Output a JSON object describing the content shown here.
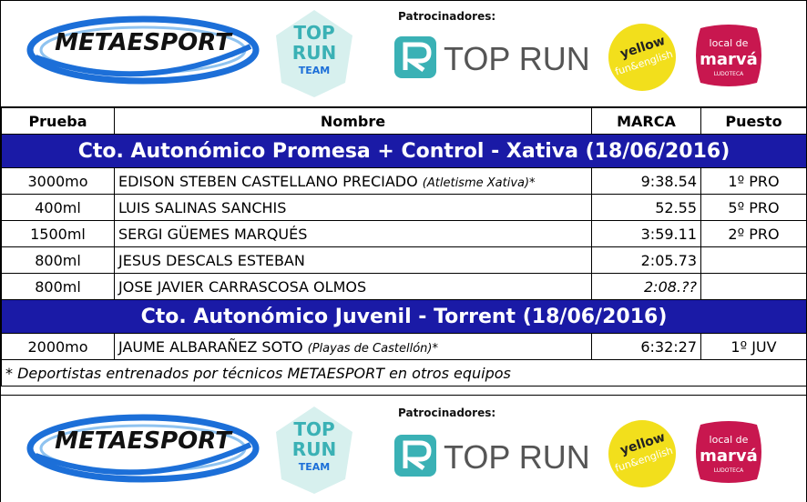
{
  "banner": {
    "metaesport_logo_text": "METAESPORT",
    "toprun_team_line1": "TOP",
    "toprun_team_line2": "RUN",
    "toprun_team_line3": "TEAM",
    "sponsors_label": "Patrocinadores:",
    "toprun_wordmark": "TOP RUN",
    "yellow_text1": "yellow",
    "yellow_text2": "fun&english",
    "local_text1": "local de",
    "local_text2": "marvá",
    "local_text3": "LUDOTECA"
  },
  "table": {
    "headers": {
      "prueba": "Prueba",
      "nombre": "Nombre",
      "marca": "MARCA",
      "puesto": "Puesto"
    },
    "sections": [
      {
        "title": "Cto. Autonómico Promesa + Control - Xativa (18/06/2016)",
        "rows": [
          {
            "prueba": "3000mo",
            "nombre": "EDISON STEBEN CASTELLANO PRECIADO",
            "club": "(Atletisme Xativa)*",
            "marca": "9:38.54",
            "puesto": "1º PRO"
          },
          {
            "prueba": "400ml",
            "nombre": "LUIS SALINAS SANCHIS",
            "club": "",
            "marca": "52.55",
            "puesto": "5º PRO"
          },
          {
            "prueba": "1500ml",
            "nombre": "SERGI GÜEMES MARQUÉS",
            "club": "",
            "marca": "3:59.11",
            "puesto": "2º PRO"
          },
          {
            "prueba": "800ml",
            "nombre": "JESUS DESCALS ESTEBAN",
            "club": "",
            "marca": "2:05.73",
            "puesto": ""
          },
          {
            "prueba": "800ml",
            "nombre": "JOSE JAVIER CARRASCOSA OLMOS",
            "club": "",
            "marca": "2:08.??",
            "puesto": ""
          }
        ]
      },
      {
        "title": "Cto. Autonómico Juvenil - Torrent (18/06/2016)",
        "rows": [
          {
            "prueba": "2000mo",
            "nombre": "JAUME ALBARAÑEZ SOTO",
            "club": "(Playas de Castellón)*",
            "marca": "6:32:27",
            "puesto": "1º JUV"
          }
        ]
      }
    ],
    "footnote": "* Deportistas entrenados por técnicos METAESPORT en otros equipos"
  },
  "colors": {
    "section_bg": "#1a1aa6",
    "metaesport_blue": "#1c6fd8",
    "toprun_teal": "#3ab1b5",
    "yellow": "#f2df1c",
    "local_pink": "#c8174f"
  }
}
